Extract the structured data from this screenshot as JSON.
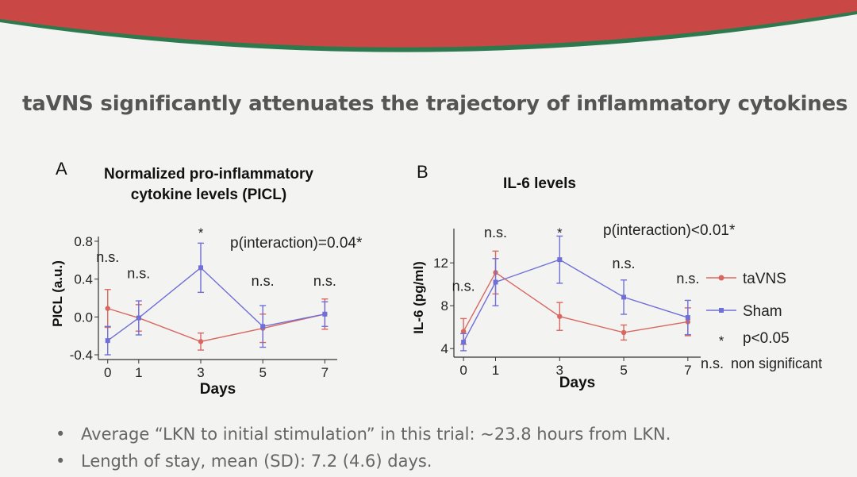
{
  "slide": {
    "title": "taVNS significantly attenuates the trajectory of inflammatory cytokines",
    "banner_color": "#c94846",
    "banner_stripe_color": "#2e7a4f",
    "bullets": [
      "Average “LKN to initial stimulation” in this trial: ~23.8 hours from LKN.",
      "Length of stay, mean (SD): 7.2 (4.6) days."
    ]
  },
  "legend": {
    "items": [
      {
        "label": "taVNS",
        "color": "#d9675f",
        "marker": "circle"
      },
      {
        "label": "Sham",
        "color": "#6f6fd6",
        "marker": "square"
      },
      {
        "label": "p<0.05",
        "symbol": "*"
      },
      {
        "label": "non significant",
        "symbol": "n.s."
      }
    ]
  },
  "chart_data": [
    {
      "panel": "A",
      "type": "line",
      "title": "Normalized pro-inflammatory cytokine levels (PICL)",
      "xlabel": "Days",
      "ylabel": "PICL (a.u.)",
      "x_ticks": [
        0,
        1,
        3,
        5,
        7
      ],
      "y_ticks": [
        -0.4,
        0.0,
        0.4,
        0.8
      ],
      "y_tick_labels": [
        "-0.4",
        "0.0",
        "0.4",
        "0.8"
      ],
      "xlim": [
        -0.3,
        7.4
      ],
      "ylim": [
        -0.45,
        0.85
      ],
      "series": [
        {
          "name": "taVNS",
          "color": "#d9675f",
          "x": [
            0,
            1,
            3,
            5,
            7
          ],
          "y": [
            0.09,
            -0.01,
            -0.26,
            -0.12,
            0.03
          ],
          "err": [
            0.2,
            0.14,
            0.09,
            0.15,
            0.16
          ]
        },
        {
          "name": "Sham",
          "color": "#6f6fd6",
          "x": [
            0,
            1,
            3,
            5,
            7
          ],
          "y": [
            -0.25,
            -0.01,
            0.52,
            -0.1,
            0.03
          ],
          "err": [
            0.15,
            0.18,
            0.26,
            0.22,
            0.13
          ]
        }
      ],
      "significance": [
        {
          "x": 0,
          "label": "n.s.",
          "y": 0.58
        },
        {
          "x": 1,
          "label": "n.s.",
          "y": 0.41
        },
        {
          "x": 3,
          "label": "*",
          "y": 0.84
        },
        {
          "x": 5,
          "label": "n.s.",
          "y": 0.33
        },
        {
          "x": 7,
          "label": "n.s.",
          "y": 0.33
        }
      ],
      "annotation": "p(interaction)=0.04*"
    },
    {
      "panel": "B",
      "type": "line",
      "title": "IL-6 levels",
      "xlabel": "Days",
      "ylabel": "IL-6 (pg/ml)",
      "x_ticks": [
        0,
        1,
        3,
        5,
        7
      ],
      "y_ticks": [
        4,
        8,
        12
      ],
      "y_tick_labels": [
        "4",
        "8",
        "12"
      ],
      "xlim": [
        -0.3,
        7.4
      ],
      "ylim": [
        3.2,
        15.2
      ],
      "series": [
        {
          "name": "taVNS",
          "color": "#d9675f",
          "x": [
            0,
            1,
            3,
            5,
            7
          ],
          "y": [
            5.6,
            11.1,
            7.0,
            5.5,
            6.5
          ],
          "err": [
            1.2,
            2.0,
            1.3,
            0.7,
            1.3
          ]
        },
        {
          "name": "Sham",
          "color": "#6f6fd6",
          "x": [
            0,
            1,
            3,
            5,
            7
          ],
          "y": [
            4.6,
            10.2,
            12.3,
            8.8,
            6.9
          ],
          "err": [
            0.8,
            2.2,
            2.2,
            1.6,
            1.6
          ]
        }
      ],
      "significance": [
        {
          "x": 0,
          "label": "n.s.",
          "y": 9.4
        },
        {
          "x": 1,
          "label": "n.s.",
          "y": 14.4
        },
        {
          "x": 3,
          "label": "*",
          "y": 14.4
        },
        {
          "x": 5,
          "label": "n.s.",
          "y": 11.5
        },
        {
          "x": 7,
          "label": "n.s.",
          "y": 10.1
        }
      ],
      "annotation": "p(interaction)<0.01*"
    }
  ]
}
